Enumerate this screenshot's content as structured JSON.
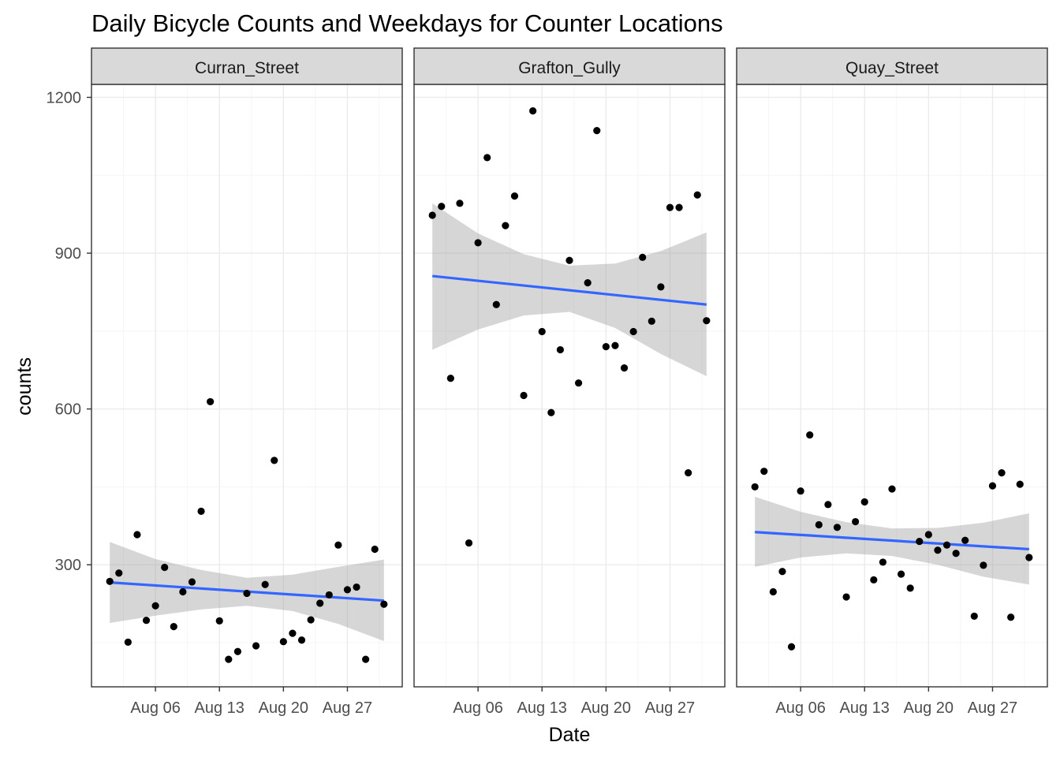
{
  "chart_data": {
    "type": "scatter",
    "title": "Daily Bicycle Counts and Weekdays for Counter Locations",
    "xlabel": "Date",
    "ylabel": "counts",
    "x_tick_labels": [
      "Aug 06",
      "Aug 13",
      "Aug 20",
      "Aug 27"
    ],
    "x_ticks": [
      "2018-08-06",
      "2018-08-13",
      "2018-08-20",
      "2018-08-27"
    ],
    "y_ticks": [
      300,
      600,
      900,
      1200
    ],
    "y_tick_labels": [
      "300",
      "600",
      "900",
      "1200"
    ],
    "xlim": [
      "2018-07-30",
      "2018-09-02"
    ],
    "ylim": [
      65,
      1225
    ],
    "grid": true,
    "colors": {
      "points": "#000000",
      "smooth_line": "#3366FF",
      "confidence_band": "#999999",
      "strip_background": "#D9D9D9",
      "panel_border": "#333333",
      "grid_major": "#EBEBEB",
      "grid_minor": "#F5F5F5"
    },
    "panels": [
      {
        "name": "Curran_Street",
        "points": [
          {
            "x": "2018-08-01",
            "y": 268
          },
          {
            "x": "2018-08-02",
            "y": 284
          },
          {
            "x": "2018-08-03",
            "y": 151
          },
          {
            "x": "2018-08-04",
            "y": 358
          },
          {
            "x": "2018-08-05",
            "y": 193
          },
          {
            "x": "2018-08-06",
            "y": 221
          },
          {
            "x": "2018-08-07",
            "y": 295
          },
          {
            "x": "2018-08-08",
            "y": 181
          },
          {
            "x": "2018-08-09",
            "y": 248
          },
          {
            "x": "2018-08-10",
            "y": 267
          },
          {
            "x": "2018-08-11",
            "y": 403
          },
          {
            "x": "2018-08-12",
            "y": 614
          },
          {
            "x": "2018-08-13",
            "y": 192
          },
          {
            "x": "2018-08-14",
            "y": 118
          },
          {
            "x": "2018-08-15",
            "y": 133
          },
          {
            "x": "2018-08-16",
            "y": 245
          },
          {
            "x": "2018-08-17",
            "y": 144
          },
          {
            "x": "2018-08-18",
            "y": 262
          },
          {
            "x": "2018-08-19",
            "y": 501
          },
          {
            "x": "2018-08-20",
            "y": 152
          },
          {
            "x": "2018-08-21",
            "y": 168
          },
          {
            "x": "2018-08-22",
            "y": 155
          },
          {
            "x": "2018-08-23",
            "y": 194
          },
          {
            "x": "2018-08-24",
            "y": 226
          },
          {
            "x": "2018-08-25",
            "y": 242
          },
          {
            "x": "2018-08-26",
            "y": 338
          },
          {
            "x": "2018-08-27",
            "y": 252
          },
          {
            "x": "2018-08-28",
            "y": 257
          },
          {
            "x": "2018-08-29",
            "y": 118
          },
          {
            "x": "2018-08-30",
            "y": 330
          },
          {
            "x": "2018-08-31",
            "y": 224
          }
        ],
        "smooth": {
          "start": 266,
          "end": 231
        },
        "band": [
          {
            "x": "2018-08-01",
            "lo": 188,
            "hi": 344
          },
          {
            "x": "2018-08-06",
            "lo": 202,
            "hi": 311
          },
          {
            "x": "2018-08-11",
            "lo": 214,
            "hi": 290
          },
          {
            "x": "2018-08-16",
            "lo": 221,
            "hi": 275
          },
          {
            "x": "2018-08-21",
            "lo": 211,
            "hi": 281
          },
          {
            "x": "2018-08-26",
            "lo": 186,
            "hi": 296
          },
          {
            "x": "2018-08-31",
            "lo": 153,
            "hi": 310
          }
        ]
      },
      {
        "name": "Grafton_Gully",
        "points": [
          {
            "x": "2018-08-01",
            "y": 973
          },
          {
            "x": "2018-08-02",
            "y": 990
          },
          {
            "x": "2018-08-03",
            "y": 659
          },
          {
            "x": "2018-08-04",
            "y": 996
          },
          {
            "x": "2018-08-05",
            "y": 342
          },
          {
            "x": "2018-08-06",
            "y": 920
          },
          {
            "x": "2018-08-07",
            "y": 1084
          },
          {
            "x": "2018-08-08",
            "y": 801
          },
          {
            "x": "2018-08-09",
            "y": 953
          },
          {
            "x": "2018-08-10",
            "y": 1010
          },
          {
            "x": "2018-08-11",
            "y": 626
          },
          {
            "x": "2018-08-12",
            "y": 1174
          },
          {
            "x": "2018-08-13",
            "y": 749
          },
          {
            "x": "2018-08-14",
            "y": 593
          },
          {
            "x": "2018-08-15",
            "y": 714
          },
          {
            "x": "2018-08-16",
            "y": 886
          },
          {
            "x": "2018-08-17",
            "y": 650
          },
          {
            "x": "2018-08-18",
            "y": 843
          },
          {
            "x": "2018-08-19",
            "y": 1136
          },
          {
            "x": "2018-08-20",
            "y": 720
          },
          {
            "x": "2018-08-21",
            "y": 722
          },
          {
            "x": "2018-08-22",
            "y": 679
          },
          {
            "x": "2018-08-23",
            "y": 749
          },
          {
            "x": "2018-08-24",
            "y": 892
          },
          {
            "x": "2018-08-25",
            "y": 769
          },
          {
            "x": "2018-08-26",
            "y": 835
          },
          {
            "x": "2018-08-27",
            "y": 988
          },
          {
            "x": "2018-08-28",
            "y": 988
          },
          {
            "x": "2018-08-29",
            "y": 477
          },
          {
            "x": "2018-08-30",
            "y": 1012
          },
          {
            "x": "2018-08-31",
            "y": 770
          }
        ],
        "smooth": {
          "start": 856,
          "end": 801
        },
        "band": [
          {
            "x": "2018-08-01",
            "lo": 714,
            "hi": 996
          },
          {
            "x": "2018-08-06",
            "lo": 753,
            "hi": 938
          },
          {
            "x": "2018-08-11",
            "lo": 780,
            "hi": 898
          },
          {
            "x": "2018-08-16",
            "lo": 787,
            "hi": 876
          },
          {
            "x": "2018-08-21",
            "lo": 756,
            "hi": 880
          },
          {
            "x": "2018-08-26",
            "lo": 706,
            "hi": 904
          },
          {
            "x": "2018-08-31",
            "lo": 663,
            "hi": 940
          }
        ]
      },
      {
        "name": "Quay_Street",
        "points": [
          {
            "x": "2018-08-01",
            "y": 450
          },
          {
            "x": "2018-08-02",
            "y": 480
          },
          {
            "x": "2018-08-03",
            "y": 248
          },
          {
            "x": "2018-08-04",
            "y": 287
          },
          {
            "x": "2018-08-05",
            "y": 142
          },
          {
            "x": "2018-08-06",
            "y": 442
          },
          {
            "x": "2018-08-07",
            "y": 550
          },
          {
            "x": "2018-08-08",
            "y": 377
          },
          {
            "x": "2018-08-09",
            "y": 416
          },
          {
            "x": "2018-08-10",
            "y": 372
          },
          {
            "x": "2018-08-11",
            "y": 238
          },
          {
            "x": "2018-08-12",
            "y": 383
          },
          {
            "x": "2018-08-13",
            "y": 421
          },
          {
            "x": "2018-08-14",
            "y": 271
          },
          {
            "x": "2018-08-15",
            "y": 305
          },
          {
            "x": "2018-08-16",
            "y": 446
          },
          {
            "x": "2018-08-17",
            "y": 282
          },
          {
            "x": "2018-08-18",
            "y": 255
          },
          {
            "x": "2018-08-19",
            "y": 345
          },
          {
            "x": "2018-08-20",
            "y": 358
          },
          {
            "x": "2018-08-21",
            "y": 328
          },
          {
            "x": "2018-08-22",
            "y": 338
          },
          {
            "x": "2018-08-23",
            "y": 322
          },
          {
            "x": "2018-08-24",
            "y": 347
          },
          {
            "x": "2018-08-25",
            "y": 201
          },
          {
            "x": "2018-08-26",
            "y": 299
          },
          {
            "x": "2018-08-27",
            "y": 452
          },
          {
            "x": "2018-08-28",
            "y": 477
          },
          {
            "x": "2018-08-29",
            "y": 199
          },
          {
            "x": "2018-08-30",
            "y": 455
          },
          {
            "x": "2018-08-31",
            "y": 314
          }
        ],
        "smooth": {
          "start": 363,
          "end": 330
        },
        "band": [
          {
            "x": "2018-08-01",
            "lo": 296,
            "hi": 431
          },
          {
            "x": "2018-08-06",
            "lo": 314,
            "hi": 402
          },
          {
            "x": "2018-08-11",
            "lo": 322,
            "hi": 382
          },
          {
            "x": "2018-08-16",
            "lo": 317,
            "hi": 370
          },
          {
            "x": "2018-08-21",
            "lo": 300,
            "hi": 371
          },
          {
            "x": "2018-08-26",
            "lo": 277,
            "hi": 381
          },
          {
            "x": "2018-08-31",
            "lo": 262,
            "hi": 399
          }
        ]
      }
    ]
  }
}
